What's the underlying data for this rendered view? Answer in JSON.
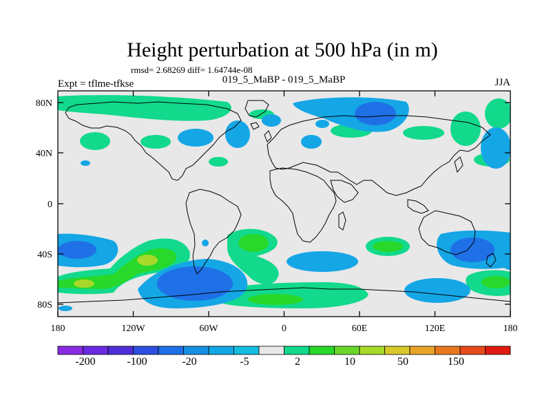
{
  "title": "Height perturbation at 500 hPa (in m)",
  "stats_label": "rmsd= 2.68269 diff= 1.64744e-08",
  "left_label": "Expt = tflme-tfkse",
  "center_label": "019_5_MaBP - 019_5_MaBP",
  "right_label": "JJA",
  "chart_data": {
    "type": "heatmap",
    "title": "Height perturbation at 500 hPa (in m)",
    "x_ticks": [
      "180",
      "120W",
      "60W",
      "0",
      "60E",
      "120E",
      "180"
    ],
    "y_ticks": [
      "80N",
      "40N",
      "0",
      "40S",
      "80S"
    ],
    "xlim": [
      -180,
      180
    ],
    "ylim": [
      -90,
      90
    ],
    "colorbar": {
      "levels_labeled": [
        "-200",
        "-100",
        "-20",
        "-5",
        "2",
        "10",
        "50",
        "150"
      ],
      "colors": [
        "#8a2be2",
        "#6a2ae0",
        "#4f2fd6",
        "#2e4fe0",
        "#1f70e6",
        "#188fe2",
        "#15a6e6",
        "#12bde0",
        "#e8e8e8",
        "#12d98c",
        "#28d82a",
        "#6ad62a",
        "#a8d92a",
        "#d8c82a",
        "#e8a42a",
        "#e8781f",
        "#e54a1a",
        "#e01a12"
      ]
    },
    "contour_fields": [
      {
        "lon": -125,
        "lat": 70,
        "value": 2,
        "color": "#12d98c"
      },
      {
        "lon": 52,
        "lat": 74,
        "value": -5,
        "color": "#15a6e6"
      },
      {
        "lon": 60,
        "lat": 72,
        "value": -20,
        "color": "#1f70e6"
      },
      {
        "lon": -110,
        "lat": -48,
        "value": 10,
        "color": "#28d82a"
      },
      {
        "lon": -150,
        "lat": -64,
        "value": 10,
        "color": "#28d82a"
      },
      {
        "lon": -70,
        "lat": -65,
        "value": -20,
        "color": "#1f70e6"
      },
      {
        "lon": -25,
        "lat": -33,
        "value": 10,
        "color": "#28d82a"
      },
      {
        "lon": 40,
        "lat": -70,
        "value": 2,
        "color": "#12d98c"
      },
      {
        "lon": 145,
        "lat": -40,
        "value": -20,
        "color": "#1f70e6"
      },
      {
        "lon": 175,
        "lat": -64,
        "value": 10,
        "color": "#28d82a"
      }
    ]
  }
}
